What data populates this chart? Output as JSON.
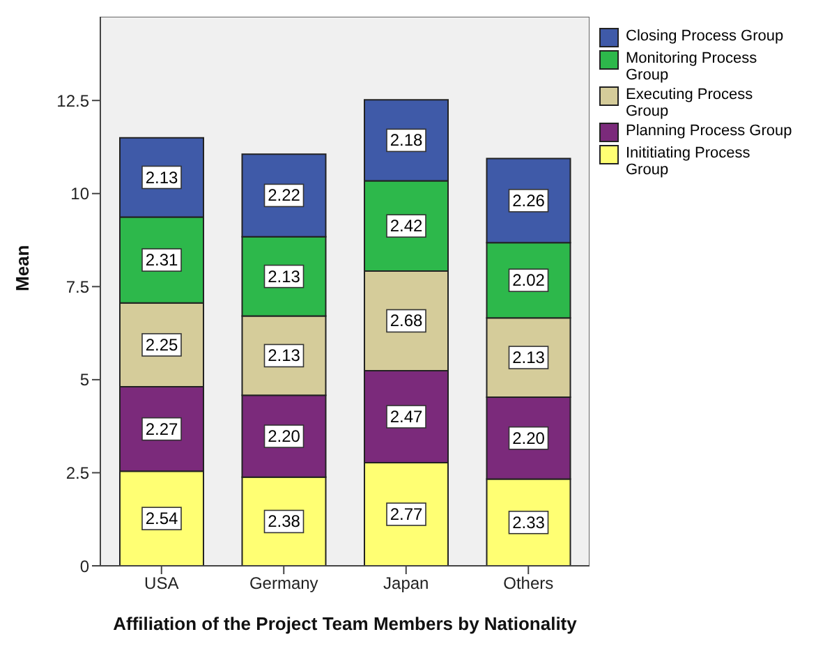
{
  "chart_data": {
    "type": "bar",
    "stacked": true,
    "xlabel": "Affiliation of the Project Team Members by Nationality",
    "ylabel": "Mean",
    "categories": [
      "USA",
      "Germany",
      "Japan",
      "Others"
    ],
    "series": [
      {
        "name": "Inititiating Process Group",
        "color": "#ffff73",
        "values": [
          2.54,
          2.38,
          2.77,
          2.33
        ],
        "value_labels": [
          "2.54",
          "2.38",
          "2.77",
          "2.33"
        ]
      },
      {
        "name": "Planning Process Group",
        "color": "#7b2a7b",
        "values": [
          2.27,
          2.2,
          2.47,
          2.2
        ],
        "value_labels": [
          "2.27",
          "2.20",
          "2.47",
          "2.20"
        ]
      },
      {
        "name": "Executing Process Group",
        "color": "#d5cc9a",
        "values": [
          2.25,
          2.13,
          2.68,
          2.13
        ],
        "value_labels": [
          "2.25",
          "2.13",
          "2.68",
          "2.13"
        ]
      },
      {
        "name": "Monitoring Process Group",
        "color": "#2db84b",
        "values": [
          2.31,
          2.13,
          2.42,
          2.02
        ],
        "value_labels": [
          "2.31",
          "2.13",
          "2.42",
          "2.02"
        ]
      },
      {
        "name": "Closing Process Group",
        "color": "#3f5aa8",
        "values": [
          2.13,
          2.22,
          2.18,
          2.26
        ],
        "value_labels": [
          "2.13",
          "2.22",
          "2.18",
          "2.26"
        ]
      }
    ],
    "ylim": [
      0,
      14.75
    ],
    "yticks": [
      0,
      2.5,
      5,
      7.5,
      10,
      12.5
    ],
    "legend": "top right"
  }
}
